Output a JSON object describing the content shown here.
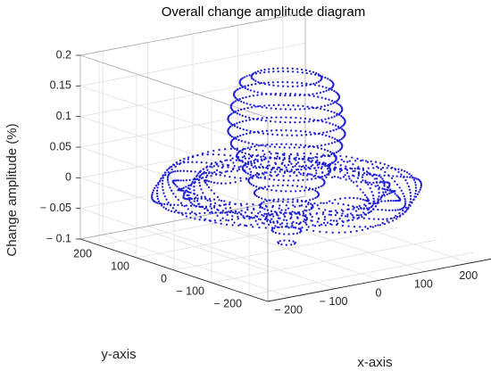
{
  "chart_data": {
    "type": "scatter",
    "title": "Overall change amplitude diagram",
    "xlabel": "x-axis",
    "ylabel": "y-axis",
    "zlabel": "Change amplitude (%)",
    "xlim": [
      -250,
      250
    ],
    "ylim": [
      -250,
      250
    ],
    "zlim": [
      -0.1,
      0.2
    ],
    "x_ticks": [
      "-200",
      "-100",
      "0",
      "100",
      "200"
    ],
    "y_ticks": [
      "-200",
      "-100",
      "0",
      "100",
      "200"
    ],
    "z_ticks": [
      "-0.1",
      "-0.05",
      "0",
      "0.05",
      "0.1",
      "0.15",
      "0.2"
    ],
    "grid": true,
    "marker_color": "#1f1fd6",
    "series": [
      {
        "type": "annular-plate",
        "radius_range": [
          140,
          230
        ],
        "z_range": [
          -0.02,
          0.01
        ]
      },
      {
        "type": "central-funnel",
        "rings": [
          {
            "r": 15,
            "z": -0.09
          },
          {
            "r": 25,
            "z": -0.07
          },
          {
            "r": 35,
            "z": -0.05
          },
          {
            "r": 45,
            "z": -0.03
          },
          {
            "r": 55,
            "z": -0.01
          },
          {
            "r": 65,
            "z": 0.01
          },
          {
            "r": 75,
            "z": 0.03
          },
          {
            "r": 85,
            "z": 0.05
          },
          {
            "r": 95,
            "z": 0.07
          },
          {
            "r": 100,
            "z": 0.09
          },
          {
            "r": 100,
            "z": 0.11
          },
          {
            "r": 95,
            "z": 0.13
          },
          {
            "r": 90,
            "z": 0.15
          },
          {
            "r": 80,
            "z": 0.17
          },
          {
            "r": 60,
            "z": 0.18
          }
        ]
      }
    ]
  }
}
